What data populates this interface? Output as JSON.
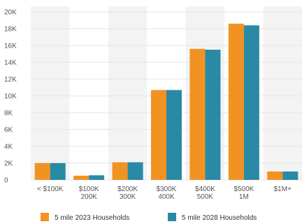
{
  "chart_data": {
    "type": "bar",
    "categories": [
      [
        "< $100K"
      ],
      [
        "$100K",
        "200K"
      ],
      [
        "$200K",
        "300K"
      ],
      [
        "$300K",
        "400K"
      ],
      [
        "$400K",
        "500K"
      ],
      [
        "$500K",
        "1M"
      ],
      [
        "$1M+"
      ]
    ],
    "series": [
      {
        "name": "5 mile 2023 Households",
        "color": "#f29222",
        "values": [
          2000,
          500,
          2100,
          10700,
          15600,
          18600,
          1000
        ]
      },
      {
        "name": "5 mile 2028 Households",
        "color": "#2a8aa6",
        "values": [
          2000,
          550,
          2100,
          10700,
          15500,
          18400,
          1000
        ]
      }
    ],
    "ylim": [
      0,
      20000
    ],
    "yticks": [
      0,
      2000,
      4000,
      6000,
      8000,
      10000,
      12000,
      14000,
      16000,
      18000,
      20000
    ],
    "ytick_labels": [
      "0",
      "2K",
      "4K",
      "6K",
      "8K",
      "10K",
      "12K",
      "14K",
      "16K",
      "18K",
      "20K"
    ],
    "grid": true,
    "legend_position": "bottom",
    "band_colors": [
      "#f3f3f3",
      "#ffffff"
    ]
  }
}
